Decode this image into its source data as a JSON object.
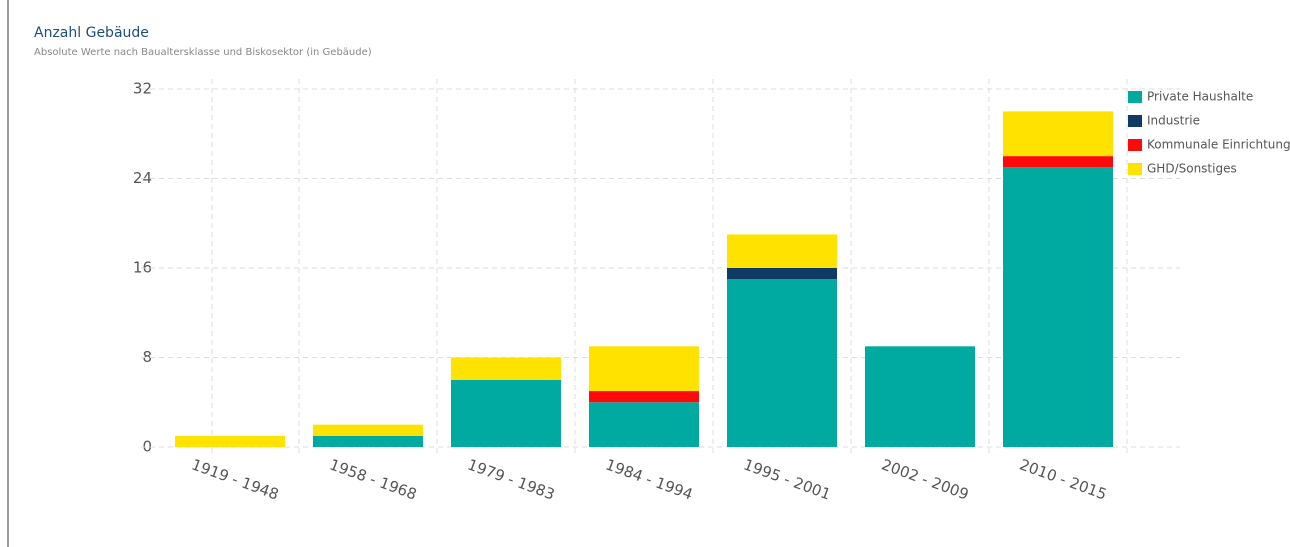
{
  "chart_data": {
    "type": "stacked_bar",
    "title": "Anzahl Gebäude",
    "subtitle": "Absolute Werte nach Baualtersklasse und Biskosektor (in Gebäude)",
    "categories": [
      "1919 - 1948",
      "1958 - 1968",
      "1979 - 1983",
      "1984 - 1994",
      "1995 - 2001",
      "2002 - 2009",
      "2010 - 2015"
    ],
    "series": [
      {
        "name": "Private Haushalte",
        "color": "#00aaa0",
        "values": [
          0,
          1,
          6,
          4,
          15,
          9,
          25
        ]
      },
      {
        "name": "Industrie",
        "color": "#0e3a64",
        "values": [
          0,
          0,
          0,
          0,
          1,
          0,
          0
        ]
      },
      {
        "name": "Kommunale Einrichtungen",
        "color": "#ff0a0a",
        "values": [
          0,
          0,
          0,
          1,
          0,
          0,
          1
        ]
      },
      {
        "name": "GHD/Sonstiges",
        "color": "#ffe200",
        "values": [
          1,
          1,
          2,
          4,
          3,
          0,
          4
        ]
      }
    ],
    "ylim": [
      0,
      32
    ],
    "yticks": [
      0,
      8,
      16,
      24,
      32
    ],
    "grid": true,
    "legend": "top-right"
  }
}
